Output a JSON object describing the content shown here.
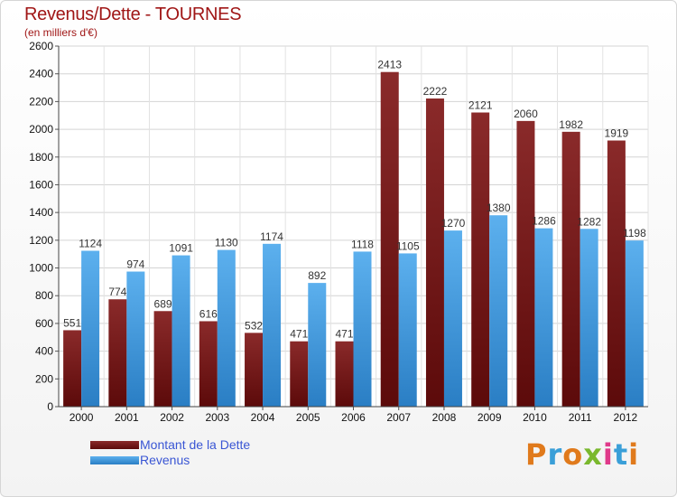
{
  "chart_data": {
    "type": "bar",
    "title": "Revenus/Dette - TOURNES",
    "subtitle": "(en milliers d'€)",
    "xlabel": "",
    "ylabel": "",
    "ylim": [
      0,
      2600
    ],
    "yticks": [
      0,
      200,
      400,
      600,
      800,
      1000,
      1200,
      1400,
      1600,
      1800,
      2000,
      2200,
      2400,
      2600
    ],
    "grid": true,
    "categories": [
      "2000",
      "2001",
      "2002",
      "2003",
      "2004",
      "2005",
      "2006",
      "2007",
      "2008",
      "2009",
      "2010",
      "2011",
      "2012"
    ],
    "series": [
      {
        "name": "Montant de la Dette",
        "color": "#7a1c1c",
        "values": [
          551,
          774,
          689,
          616,
          532,
          471,
          471,
          2413,
          2222,
          2121,
          2060,
          1982,
          1919
        ]
      },
      {
        "name": "Revenus",
        "color": "#4a9fe0",
        "values": [
          1124,
          974,
          1091,
          1130,
          1174,
          892,
          1118,
          1105,
          1270,
          1380,
          1286,
          1282,
          1198
        ]
      }
    ],
    "legend": "bottom-left"
  },
  "logo": {
    "text": "Proxiti",
    "colors": [
      "#e07a1c",
      "#3a9fd8",
      "#e07a1c",
      "#7ab82e",
      "#e03a8a",
      "#3a9fd8",
      "#e07a1c"
    ]
  }
}
